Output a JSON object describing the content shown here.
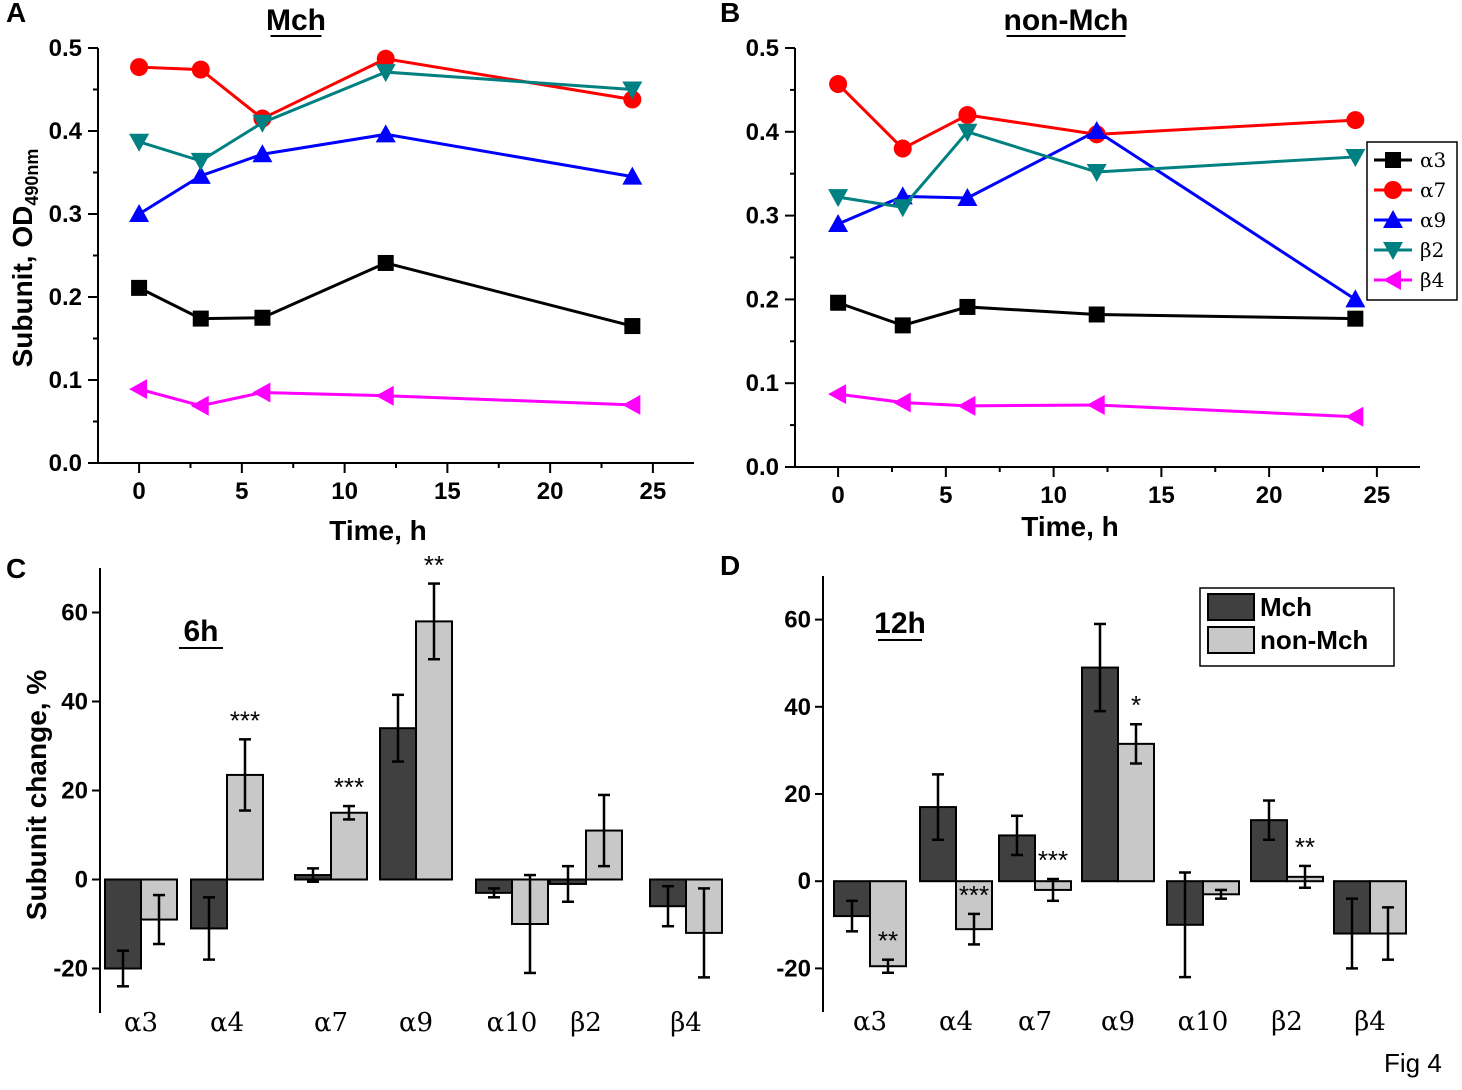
{
  "figure_label": "Fig 4",
  "chart_data": [
    {
      "panel": "A",
      "type": "line",
      "title": "Mch",
      "xlabel": "Time, h",
      "ylabel_main": "Subunit, OD",
      "ylabel_sub": "490nm",
      "xlim": [
        -2,
        27
      ],
      "ylim": [
        0.0,
        0.5
      ],
      "xticks": [
        0,
        5,
        10,
        15,
        20,
        25
      ],
      "yticks": [
        "0.0",
        "0.1",
        "0.2",
        "0.3",
        "0.4",
        "0.5"
      ],
      "x": [
        0,
        3,
        6,
        12,
        24
      ],
      "series": [
        {
          "name": "α3",
          "color": "#000000",
          "marker": "square",
          "values": [
            0.211,
            0.174,
            0.175,
            0.241,
            0.165
          ]
        },
        {
          "name": "α7",
          "color": "#ff0000",
          "marker": "circle",
          "values": [
            0.477,
            0.474,
            0.415,
            0.487,
            0.438
          ]
        },
        {
          "name": "α9",
          "color": "#0000ff",
          "marker": "triangle-up",
          "values": [
            0.3,
            0.346,
            0.372,
            0.396,
            0.345
          ]
        },
        {
          "name": "β2",
          "color": "#008080",
          "marker": "triangle-down",
          "values": [
            0.387,
            0.364,
            0.41,
            0.471,
            0.45
          ]
        },
        {
          "name": "β4",
          "color": "#ff00ff",
          "marker": "triangle-left",
          "values": [
            0.089,
            0.069,
            0.085,
            0.081,
            0.07
          ]
        }
      ]
    },
    {
      "panel": "B",
      "type": "line",
      "title": "non-Mch",
      "xlabel": "Time, h",
      "xlim": [
        -2,
        27
      ],
      "ylim": [
        0.0,
        0.5
      ],
      "xticks": [
        0,
        5,
        10,
        15,
        20,
        25
      ],
      "yticks": [
        "0.0",
        "0.1",
        "0.2",
        "0.3",
        "0.4",
        "0.5"
      ],
      "x": [
        0,
        3,
        6,
        12,
        24
      ],
      "legend_position": "right",
      "series": [
        {
          "name": "α3",
          "color": "#000000",
          "marker": "square",
          "values": [
            0.196,
            0.169,
            0.191,
            0.182,
            0.177
          ]
        },
        {
          "name": "α7",
          "color": "#ff0000",
          "marker": "circle",
          "values": [
            0.457,
            0.38,
            0.42,
            0.397,
            0.414
          ]
        },
        {
          "name": "α9",
          "color": "#0000ff",
          "marker": "triangle-up",
          "values": [
            0.29,
            0.323,
            0.321,
            0.401,
            0.2
          ]
        },
        {
          "name": "β2",
          "color": "#008080",
          "marker": "triangle-down",
          "values": [
            0.322,
            0.31,
            0.4,
            0.352,
            0.37
          ]
        },
        {
          "name": "β4",
          "color": "#ff00ff",
          "marker": "triangle-left",
          "values": [
            0.087,
            0.077,
            0.073,
            0.074,
            0.06
          ]
        }
      ]
    },
    {
      "panel": "C",
      "type": "bar",
      "title": "6h",
      "ylabel": "Subunit change, %",
      "ylim": [
        -30,
        70
      ],
      "yticks": [
        "-20",
        "0",
        "20",
        "40",
        "60"
      ],
      "categories": [
        "α3",
        "α4",
        "α7",
        "α9",
        "α10",
        "β2",
        "β4"
      ],
      "series": [
        {
          "name": "Mch",
          "color": "#404040",
          "values": [
            -20,
            -11,
            1,
            34,
            -3,
            -1,
            -6
          ],
          "errors": [
            4,
            7,
            1.5,
            7.5,
            1,
            4,
            4.5
          ]
        },
        {
          "name": "non-Mch",
          "color": "#c8c8c8",
          "values": [
            -9,
            23.5,
            15,
            58,
            -10,
            11,
            -12
          ],
          "errors": [
            5.5,
            8,
            1.5,
            8.5,
            11,
            8,
            10
          ]
        }
      ],
      "annotations": [
        {
          "category": "α4",
          "text": "***"
        },
        {
          "category": "α7",
          "text": "***"
        },
        {
          "category": "α9",
          "text": "**"
        }
      ]
    },
    {
      "panel": "D",
      "type": "bar",
      "title": "12h",
      "ylim": [
        -30,
        70
      ],
      "yticks": [
        "-20",
        "0",
        "20",
        "40",
        "60"
      ],
      "categories": [
        "α3",
        "α4",
        "α7",
        "α9",
        "α10",
        "β2",
        "β4"
      ],
      "legend": [
        "Mch",
        "non-Mch"
      ],
      "series": [
        {
          "name": "Mch",
          "color": "#404040",
          "values": [
            -8,
            17,
            10.5,
            49,
            -10,
            14,
            -12
          ],
          "errors": [
            3.5,
            7.5,
            4.5,
            10,
            12,
            4.5,
            8
          ]
        },
        {
          "name": "non-Mch",
          "color": "#c8c8c8",
          "values": [
            -19.5,
            -11,
            -2,
            31.5,
            -3,
            1,
            -12
          ],
          "errors": [
            1.5,
            3.5,
            2.5,
            4.5,
            1,
            2.5,
            6
          ]
        }
      ],
      "annotations": [
        {
          "category": "α3",
          "text": "**"
        },
        {
          "category": "α4",
          "text": "***"
        },
        {
          "category": "α7",
          "text": "***"
        },
        {
          "category": "α9",
          "text": "*"
        },
        {
          "category": "β2",
          "text": "**"
        }
      ]
    }
  ]
}
